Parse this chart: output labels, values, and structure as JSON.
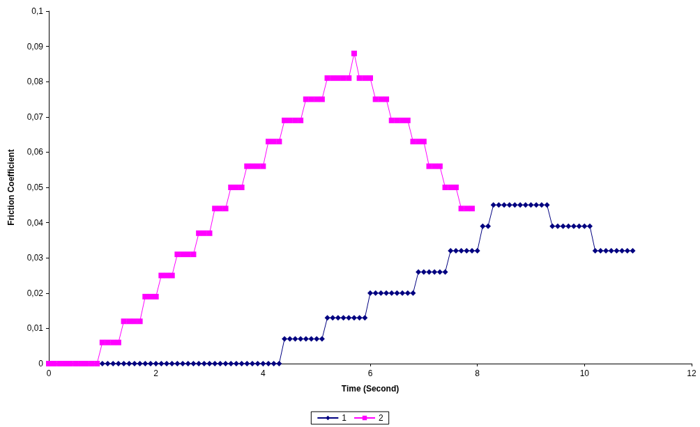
{
  "chart_data": {
    "type": "line",
    "xlabel": "Time (Second)",
    "ylabel": "Friction Coefficient",
    "xlim": [
      0,
      12
    ],
    "xticks": [
      0,
      2,
      4,
      6,
      8,
      10,
      12
    ],
    "ylim": [
      0,
      0.1
    ],
    "yticks": [
      0,
      {
        "value": 0.01,
        "label": "0,01"
      },
      {
        "value": 0.02,
        "label": "0,02"
      },
      {
        "value": 0.03,
        "label": "0,03"
      },
      {
        "value": 0.04,
        "label": "0,04"
      },
      {
        "value": 0.05,
        "label": "0,05"
      },
      {
        "value": 0.06,
        "label": "0,06"
      },
      {
        "value": 0.07,
        "label": "0,07"
      },
      {
        "value": 0.08,
        "label": "0,08"
      },
      {
        "value": 0.09,
        "label": "0,09"
      },
      {
        "value": 0.1,
        "label": "0,1"
      }
    ],
    "grid": false,
    "legend": "bottom",
    "line_style": "solid",
    "series": [
      {
        "name": "1",
        "color": "#000080",
        "marker": "diamond",
        "x": [
          1,
          1.1,
          1.2,
          1.3,
          1.4,
          1.5,
          1.6,
          1.7,
          1.8,
          1.9,
          2,
          2.1,
          2.2,
          2.3,
          2.4,
          2.5,
          2.6,
          2.7,
          2.8,
          2.9,
          3,
          3.1,
          3.2,
          3.3,
          3.4,
          3.5,
          3.6,
          3.7,
          3.8,
          3.9,
          4,
          4.1,
          4.2,
          4.3,
          4.4,
          4.5,
          4.6,
          4.7,
          4.8,
          4.9,
          5,
          5.1,
          5.2,
          5.3,
          5.4,
          5.5,
          5.6,
          5.7,
          5.8,
          5.9,
          6,
          6.1,
          6.2,
          6.3,
          6.4,
          6.5,
          6.6,
          6.7,
          6.8,
          6.9,
          7,
          7.1,
          7.2,
          7.3,
          7.4,
          7.5,
          7.6,
          7.7,
          7.8,
          7.9,
          8,
          8.1,
          8.2,
          8.3,
          8.4,
          8.5,
          8.6,
          8.7,
          8.8,
          8.9,
          9,
          9.1,
          9.2,
          9.3,
          9.4,
          9.5,
          9.6,
          9.7,
          9.8,
          9.9,
          10,
          10.1,
          10.2,
          10.3,
          10.4,
          10.5,
          10.6,
          10.7,
          10.8,
          10.9
        ],
        "values": [
          0,
          0,
          0,
          0,
          0,
          0,
          0,
          0,
          0,
          0,
          0,
          0,
          0,
          0,
          0,
          0,
          0,
          0,
          0,
          0,
          0,
          0,
          0,
          0,
          0,
          0,
          0,
          0,
          0,
          0,
          0,
          0,
          0,
          0,
          0.007,
          0.007,
          0.007,
          0.007,
          0.007,
          0.007,
          0.007,
          0.007,
          0.013,
          0.013,
          0.013,
          0.013,
          0.013,
          0.013,
          0.013,
          0.013,
          0.02,
          0.02,
          0.02,
          0.02,
          0.02,
          0.02,
          0.02,
          0.02,
          0.02,
          0.026,
          0.026,
          0.026,
          0.026,
          0.026,
          0.026,
          0.032,
          0.032,
          0.032,
          0.032,
          0.032,
          0.032,
          0.039,
          0.039,
          0.045,
          0.045,
          0.045,
          0.045,
          0.045,
          0.045,
          0.045,
          0.045,
          0.045,
          0.045,
          0.045,
          0.039,
          0.039,
          0.039,
          0.039,
          0.039,
          0.039,
          0.039,
          0.039,
          0.032,
          0.032,
          0.032,
          0.032,
          0.032,
          0.032,
          0.032,
          0.032
        ]
      },
      {
        "name": "2",
        "color": "#ff00ff",
        "marker": "square",
        "x": [
          0,
          0.1,
          0.2,
          0.3,
          0.4,
          0.5,
          0.6,
          0.7,
          0.8,
          0.9,
          1,
          1.1,
          1.2,
          1.3,
          1.4,
          1.5,
          1.6,
          1.7,
          1.8,
          1.9,
          2,
          2.1,
          2.2,
          2.3,
          2.4,
          2.5,
          2.6,
          2.7,
          2.8,
          2.9,
          3,
          3.1,
          3.2,
          3.3,
          3.4,
          3.5,
          3.6,
          3.7,
          3.8,
          3.9,
          4,
          4.1,
          4.2,
          4.3,
          4.4,
          4.5,
          4.6,
          4.7,
          4.8,
          4.9,
          5,
          5.1,
          5.2,
          5.3,
          5.4,
          5.5,
          5.6,
          5.7,
          5.8,
          5.9,
          6,
          6.1,
          6.2,
          6.3,
          6.4,
          6.5,
          6.6,
          6.7,
          6.8,
          6.9,
          7,
          7.1,
          7.2,
          7.3,
          7.4,
          7.5,
          7.6,
          7.7,
          7.8,
          7.9
        ],
        "values": [
          0,
          0,
          0,
          0,
          0,
          0,
          0,
          0,
          0,
          0,
          0.006,
          0.006,
          0.006,
          0.006,
          0.012,
          0.012,
          0.012,
          0.012,
          0.019,
          0.019,
          0.019,
          0.025,
          0.025,
          0.025,
          0.031,
          0.031,
          0.031,
          0.031,
          0.037,
          0.037,
          0.037,
          0.044,
          0.044,
          0.044,
          0.05,
          0.05,
          0.05,
          0.056,
          0.056,
          0.056,
          0.056,
          0.063,
          0.063,
          0.063,
          0.069,
          0.069,
          0.069,
          0.069,
          0.075,
          0.075,
          0.075,
          0.075,
          0.081,
          0.081,
          0.081,
          0.081,
          0.081,
          0.088,
          0.081,
          0.081,
          0.081,
          0.075,
          0.075,
          0.075,
          0.069,
          0.069,
          0.069,
          0.069,
          0.063,
          0.063,
          0.063,
          0.056,
          0.056,
          0.056,
          0.05,
          0.05,
          0.05,
          0.044,
          0.044,
          0.044
        ]
      }
    ]
  }
}
